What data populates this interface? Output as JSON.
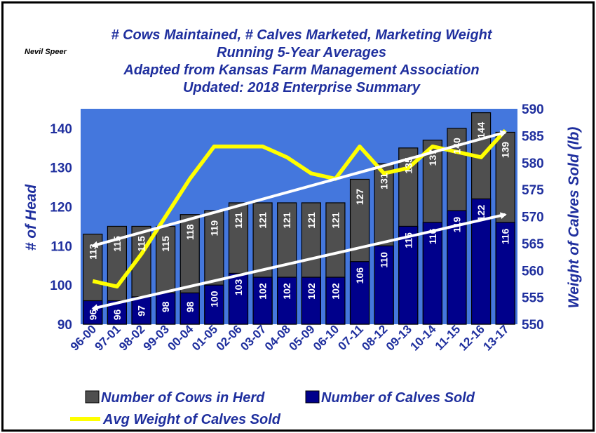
{
  "author": "Nevil Speer",
  "title_lines": [
    "# Cows Maintained, # Calves Marketed, Marketing Weight",
    "Running 5-Year Averages",
    "Adapted from Kansas Farm Management Association",
    "Updated:  2018 Enterprise Summary"
  ],
  "colors": {
    "plot_bg": "#4477dd",
    "cows": "#4f4f4f",
    "calves": "#00008b",
    "weight_line": "#ffff00",
    "arrows": "#ffffff",
    "text": "#1f2f9e"
  },
  "chart_data": {
    "type": "bar",
    "stacked_overlay": true,
    "categories": [
      "96-00",
      "97-01",
      "98-02",
      "99-03",
      "00-04",
      "01-05",
      "02-06",
      "03-07",
      "04-08",
      "05-09",
      "06-10",
      "07-11",
      "08-12",
      "09-13",
      "10-14",
      "11-15",
      "12-16",
      "13-17"
    ],
    "series": [
      {
        "name": "Number of Cows in Herd",
        "axis": "left",
        "values": [
          113,
          115,
          115,
          115,
          118,
          119,
          121,
          121,
          121,
          121,
          121,
          127,
          131,
          135,
          137,
          140,
          144,
          139
        ]
      },
      {
        "name": "Number of Calves Sold",
        "axis": "left",
        "values": [
          96,
          96,
          97,
          98,
          98,
          100,
          103,
          102,
          102,
          102,
          102,
          106,
          110,
          115,
          116,
          119,
          122,
          116
        ]
      },
      {
        "name": "Avg Weight of Calves Sold",
        "axis": "right",
        "type": "line",
        "values": [
          558,
          557,
          563,
          570,
          577,
          583,
          583,
          583,
          581,
          578,
          577,
          583,
          578,
          579,
          583,
          582,
          581,
          586
        ]
      }
    ],
    "data_labels": {
      "Number of Cows in Herd": [
        "113",
        "115",
        "115",
        "115",
        "118",
        "119",
        "121",
        "121",
        "121",
        "121",
        "121",
        "127",
        "131",
        "135",
        "137",
        "140",
        "144",
        "139"
      ],
      "Number of Calves Sold": [
        "96",
        "96",
        "97",
        "98",
        "98",
        "100",
        "103",
        "102",
        "102",
        "102",
        "102",
        "106",
        "110",
        "115",
        "116",
        "119",
        "122",
        "116"
      ]
    },
    "ylabel": "# of Head",
    "ylabel_right": "Weight of Calves Sold (lb)",
    "ylim": [
      90,
      145
    ],
    "yticks": [
      "90",
      "100",
      "110",
      "120",
      "130",
      "140"
    ],
    "ylim_right": [
      550,
      590
    ],
    "yticks_right": [
      "550",
      "555",
      "560",
      "565",
      "570",
      "575",
      "580",
      "585",
      "590"
    ],
    "legend_position": "bottom",
    "annotations": [
      {
        "kind": "double-arrow",
        "from_category": "96-00",
        "from_value": 110,
        "to_category": "13-17",
        "to_value": 139
      },
      {
        "kind": "double-arrow",
        "from_category": "96-00",
        "from_value": 94,
        "to_category": "13-17",
        "to_value": 118
      }
    ]
  }
}
